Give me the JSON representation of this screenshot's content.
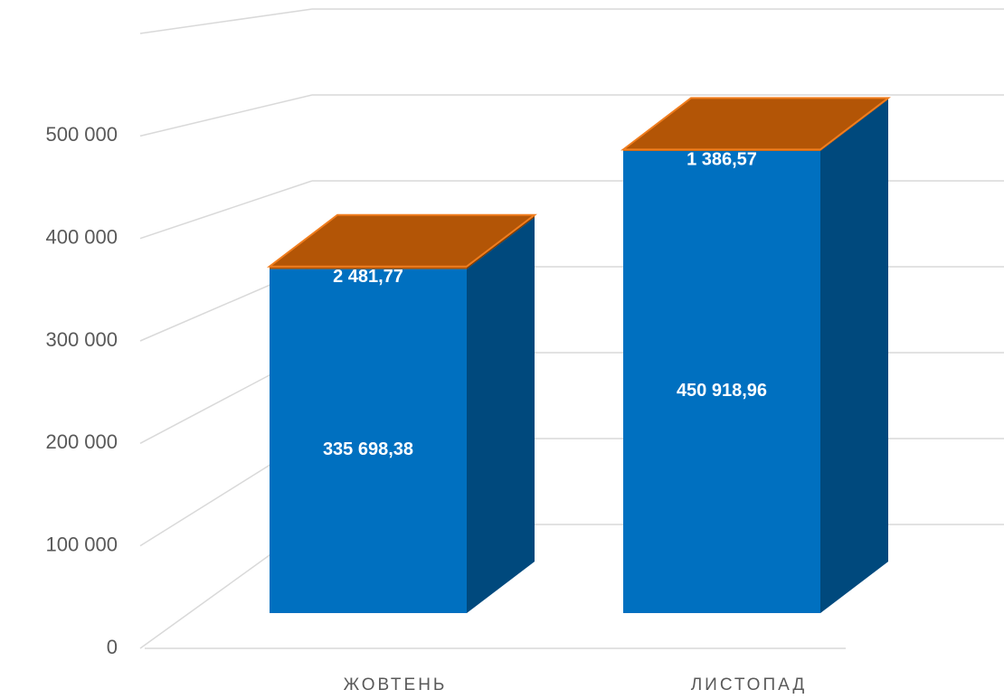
{
  "chart_data": {
    "type": "bar",
    "stacked": true,
    "categories": [
      "ЖОВТЕНЬ",
      "ЛИСТОПАД"
    ],
    "series": [
      {
        "color": "#0070c0",
        "values": [
          335698.38,
          450918.96
        ],
        "value_labels": [
          "335 698,38",
          "450 918,96"
        ]
      },
      {
        "color": "#b35506",
        "values": [
          2481.77,
          1386.57
        ],
        "value_labels": [
          "2 481,77",
          "1 386,57"
        ]
      }
    ],
    "ylim": [
      0,
      600000
    ],
    "yticks": [
      0,
      {
        "value": 100000,
        "label": "100 000"
      },
      {
        "value": 200000,
        "label": "200 000"
      },
      {
        "value": 300000,
        "label": "300 000"
      },
      {
        "value": 400000,
        "label": "400 000"
      },
      {
        "value": 500000,
        "label": "500 000"
      }
    ],
    "grid": true
  }
}
